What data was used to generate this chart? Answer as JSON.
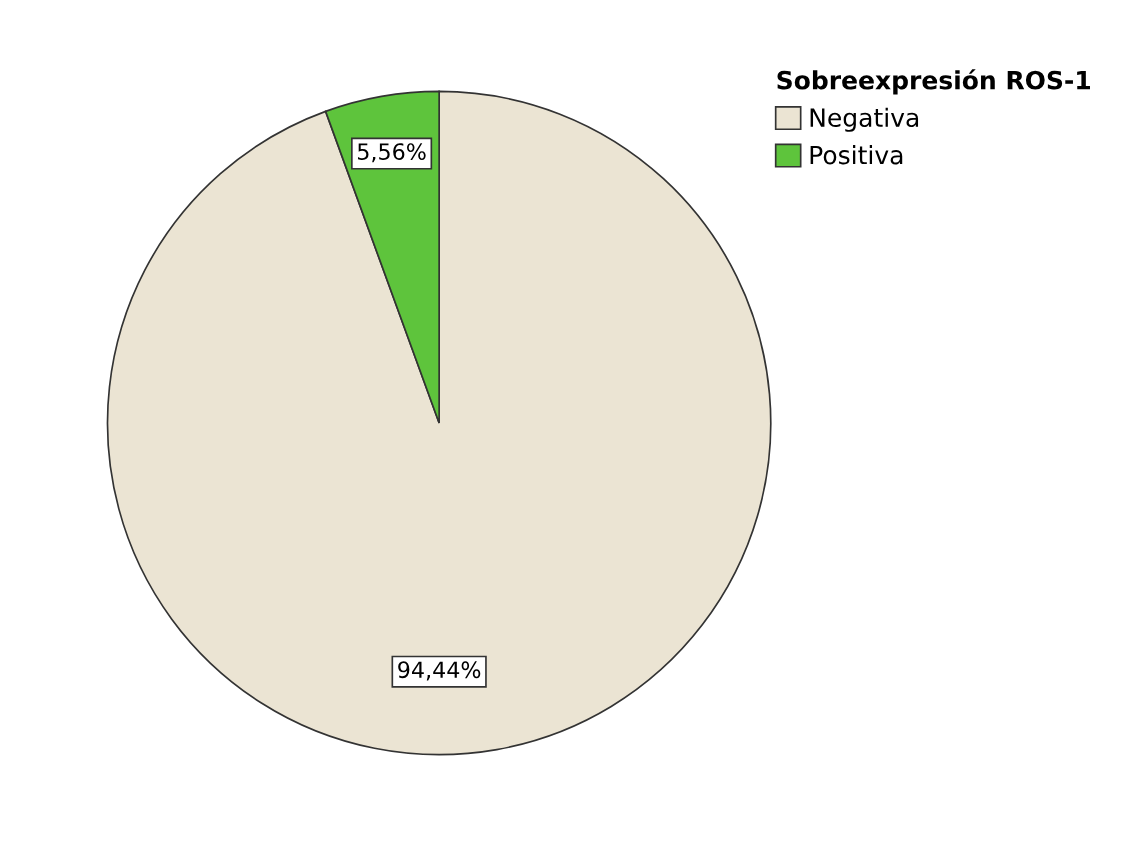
{
  "chart_data": {
    "type": "pie",
    "legend_title": "Sobreexpresión ROS-1",
    "categories": [
      "Negativa",
      "Positiva"
    ],
    "values": [
      94.44,
      5.56
    ],
    "value_labels": [
      "94,44%",
      "5,56%"
    ],
    "colors": [
      "#ebe4d3",
      "#5ec43c"
    ],
    "legend": "top right"
  }
}
